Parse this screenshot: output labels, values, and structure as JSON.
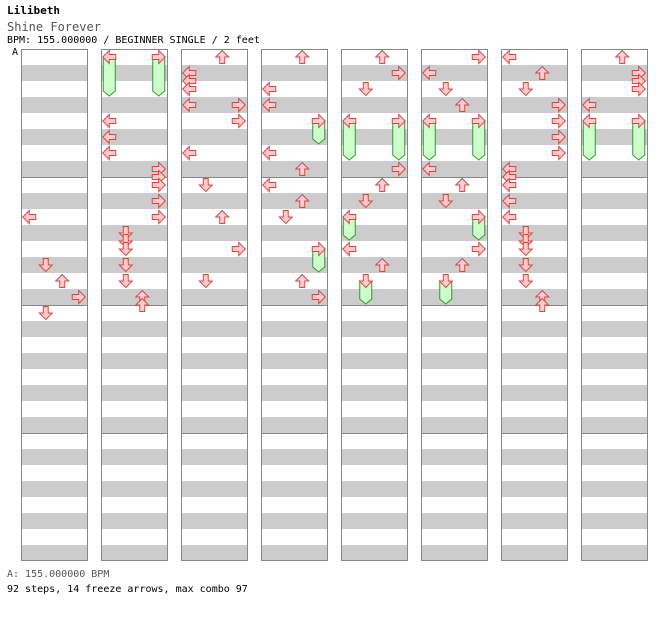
{
  "header": {
    "artist": "Lilibeth",
    "title": "Shine Forever",
    "info": "BPM: 155.000000 / BEGINNER SINGLE / 2 feet",
    "bpm_marker": "A"
  },
  "footer": {
    "bpm_legend": "A: 155.000000 BPM",
    "stats": "92 steps, 14 freeze arrows, max combo 97"
  },
  "colors": {
    "arrow_fill": "#ffcccc",
    "arrow_stroke": "#dd4444",
    "freeze_fill": "#ccffcc",
    "freeze_stroke": "#339933",
    "stripe": "#cccccc",
    "border": "#888888"
  },
  "chart_data": {
    "type": "step-chart",
    "lanes": [
      "left",
      "down",
      "up",
      "right"
    ],
    "columns": 8,
    "measures_per_column": 4,
    "columns_data": [
      {
        "notes": [
          {
            "row": 10,
            "lane": "left"
          },
          {
            "row": 13,
            "lane": "down"
          },
          {
            "row": 14,
            "lane": "up"
          },
          {
            "row": 15,
            "lane": "right"
          },
          {
            "row": 16,
            "lane": "down"
          }
        ],
        "freezes": []
      },
      {
        "notes": [
          {
            "row": 0,
            "lane": "left"
          },
          {
            "row": 0,
            "lane": "right"
          },
          {
            "row": 4,
            "lane": "left"
          },
          {
            "row": 5,
            "lane": "left"
          },
          {
            "row": 6,
            "lane": "left"
          },
          {
            "row": 7,
            "lane": "right"
          },
          {
            "row": 7.5,
            "lane": "right"
          },
          {
            "row": 8,
            "lane": "right"
          },
          {
            "row": 9,
            "lane": "right"
          },
          {
            "row": 10,
            "lane": "right"
          },
          {
            "row": 11,
            "lane": "down"
          },
          {
            "row": 11.5,
            "lane": "down"
          },
          {
            "row": 12,
            "lane": "down"
          },
          {
            "row": 13,
            "lane": "down"
          },
          {
            "row": 14,
            "lane": "down"
          },
          {
            "row": 15,
            "lane": "up"
          },
          {
            "row": 15.5,
            "lane": "up"
          }
        ],
        "freezes": [
          {
            "lane": "left",
            "start": 0,
            "end": 2
          },
          {
            "lane": "right",
            "start": 0,
            "end": 2
          }
        ]
      },
      {
        "notes": [
          {
            "row": 0,
            "lane": "up"
          },
          {
            "row": 1,
            "lane": "left"
          },
          {
            "row": 1.5,
            "lane": "left"
          },
          {
            "row": 2,
            "lane": "left"
          },
          {
            "row": 3,
            "lane": "left"
          },
          {
            "row": 3,
            "lane": "right"
          },
          {
            "row": 4,
            "lane": "right"
          },
          {
            "row": 6,
            "lane": "left"
          },
          {
            "row": 8,
            "lane": "down"
          },
          {
            "row": 10,
            "lane": "up"
          },
          {
            "row": 12,
            "lane": "right"
          },
          {
            "row": 14,
            "lane": "down"
          }
        ],
        "freezes": []
      },
      {
        "notes": [
          {
            "row": 0,
            "lane": "up"
          },
          {
            "row": 2,
            "lane": "left"
          },
          {
            "row": 3,
            "lane": "left"
          },
          {
            "row": 4,
            "lane": "right"
          },
          {
            "row": 6,
            "lane": "left"
          },
          {
            "row": 7,
            "lane": "up"
          },
          {
            "row": 8,
            "lane": "left"
          },
          {
            "row": 9,
            "lane": "up"
          },
          {
            "row": 10,
            "lane": "down"
          },
          {
            "row": 12,
            "lane": "right"
          },
          {
            "row": 14,
            "lane": "up"
          },
          {
            "row": 15,
            "lane": "right"
          }
        ],
        "freezes": [
          {
            "lane": "right",
            "start": 4,
            "end": 5
          },
          {
            "lane": "right",
            "start": 12,
            "end": 13
          }
        ]
      },
      {
        "notes": [
          {
            "row": 0,
            "lane": "up"
          },
          {
            "row": 1,
            "lane": "right"
          },
          {
            "row": 2,
            "lane": "down"
          },
          {
            "row": 4,
            "lane": "left"
          },
          {
            "row": 4,
            "lane": "right"
          },
          {
            "row": 7,
            "lane": "right"
          },
          {
            "row": 8,
            "lane": "up"
          },
          {
            "row": 9,
            "lane": "down"
          },
          {
            "row": 10,
            "lane": "left"
          },
          {
            "row": 12,
            "lane": "left"
          },
          {
            "row": 13,
            "lane": "up"
          },
          {
            "row": 14,
            "lane": "down"
          }
        ],
        "freezes": [
          {
            "lane": "left",
            "start": 4,
            "end": 6
          },
          {
            "lane": "right",
            "start": 4,
            "end": 6
          },
          {
            "lane": "left",
            "start": 10,
            "end": 11
          },
          {
            "lane": "down",
            "start": 14,
            "end": 15
          }
        ]
      },
      {
        "notes": [
          {
            "row": 0,
            "lane": "right"
          },
          {
            "row": 1,
            "lane": "left"
          },
          {
            "row": 2,
            "lane": "down"
          },
          {
            "row": 3,
            "lane": "up"
          },
          {
            "row": 4,
            "lane": "left"
          },
          {
            "row": 4,
            "lane": "right"
          },
          {
            "row": 7,
            "lane": "left"
          },
          {
            "row": 8,
            "lane": "up"
          },
          {
            "row": 9,
            "lane": "down"
          },
          {
            "row": 10,
            "lane": "right"
          },
          {
            "row": 12,
            "lane": "right"
          },
          {
            "row": 13,
            "lane": "up"
          },
          {
            "row": 14,
            "lane": "down"
          }
        ],
        "freezes": [
          {
            "lane": "left",
            "start": 4,
            "end": 6
          },
          {
            "lane": "right",
            "start": 4,
            "end": 6
          },
          {
            "lane": "right",
            "start": 10,
            "end": 11
          },
          {
            "lane": "down",
            "start": 14,
            "end": 15
          }
        ]
      },
      {
        "notes": [
          {
            "row": 0,
            "lane": "left"
          },
          {
            "row": 1,
            "lane": "up"
          },
          {
            "row": 2,
            "lane": "down"
          },
          {
            "row": 3,
            "lane": "right"
          },
          {
            "row": 4,
            "lane": "right"
          },
          {
            "row": 5,
            "lane": "right"
          },
          {
            "row": 6,
            "lane": "right"
          },
          {
            "row": 7,
            "lane": "left"
          },
          {
            "row": 7.5,
            "lane": "left"
          },
          {
            "row": 8,
            "lane": "left"
          },
          {
            "row": 9,
            "lane": "left"
          },
          {
            "row": 10,
            "lane": "left"
          },
          {
            "row": 11,
            "lane": "down"
          },
          {
            "row": 11.5,
            "lane": "down"
          },
          {
            "row": 12,
            "lane": "down"
          },
          {
            "row": 13,
            "lane": "down"
          },
          {
            "row": 14,
            "lane": "down"
          },
          {
            "row": 15,
            "lane": "up"
          },
          {
            "row": 15.5,
            "lane": "up"
          }
        ],
        "freezes": []
      },
      {
        "notes": [
          {
            "row": 0,
            "lane": "up"
          },
          {
            "row": 1,
            "lane": "right"
          },
          {
            "row": 1.5,
            "lane": "right"
          },
          {
            "row": 2,
            "lane": "right"
          },
          {
            "row": 3,
            "lane": "left"
          },
          {
            "row": 4,
            "lane": "left"
          },
          {
            "row": 4,
            "lane": "right"
          }
        ],
        "freezes": [
          {
            "lane": "left",
            "start": 4,
            "end": 6
          },
          {
            "lane": "right",
            "start": 4,
            "end": 6
          }
        ]
      }
    ]
  }
}
